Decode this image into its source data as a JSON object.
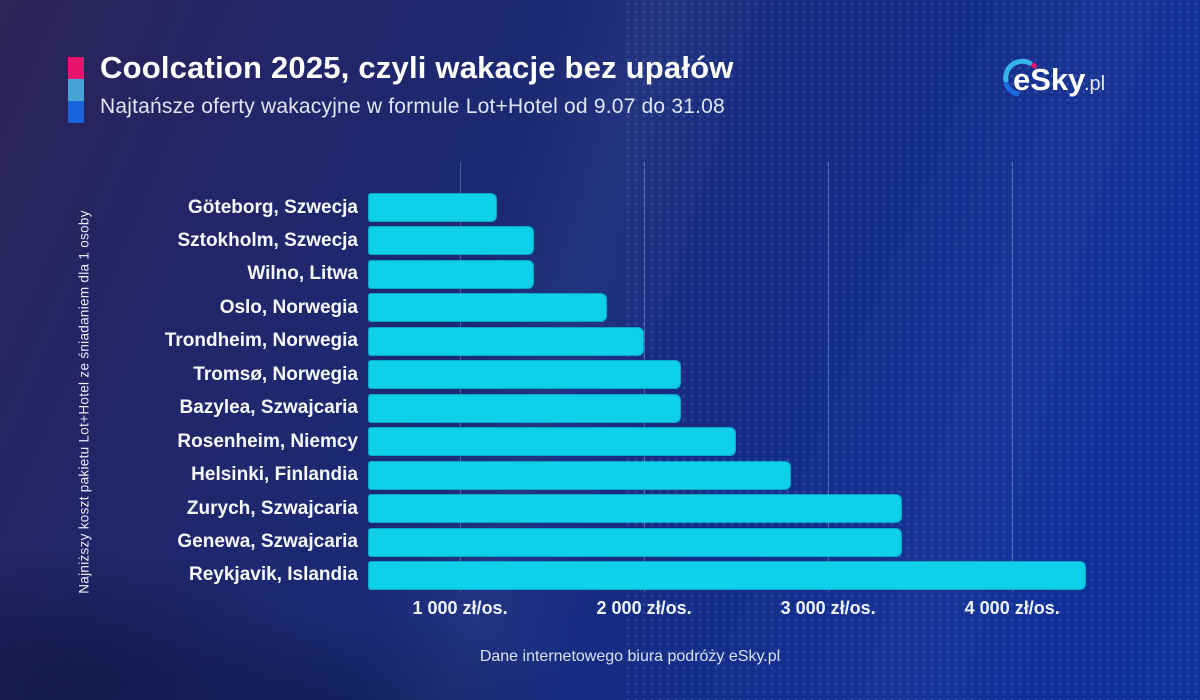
{
  "header": {
    "title": "Coolcation 2025, czyli wakacje bez upałów",
    "subtitle": "Najtańsze oferty wakacyjne w formule Lot+Hotel od 9.07 do 31.08",
    "accent_colors": [
      "#e8136b",
      "#47a4d7",
      "#1b63dc"
    ]
  },
  "logo": {
    "text": "eSky",
    "suffix": ".pl",
    "arc_top_color": "#35b6e8",
    "arc_dot_color": "#e8136b",
    "arc_bottom_color": "#1b6ae0"
  },
  "chart_data": {
    "type": "bar",
    "orientation": "horizontal",
    "title": "Coolcation 2025, czyli wakacje bez upałów",
    "subtitle": "Najtańsze oferty wakacyjne w formule Lot+Hotel od 9.07 do 31.08",
    "categories": [
      "Göteborg, Szwecja",
      "Sztokholm, Szwecja",
      "Wilno, Litwa",
      "Oslo, Norwegia",
      "Trondheim, Norwegia",
      "Tromsø, Norwegia",
      "Bazylea, Szwajcaria",
      "Rosenheim, Niemcy",
      "Helsinki, Finlandia",
      "Zurych, Szwajcaria",
      "Genewa, Szwajcaria",
      "Reykjavik, Islandia"
    ],
    "values": [
      1200,
      1400,
      1400,
      1800,
      2000,
      2200,
      2200,
      2500,
      2800,
      3400,
      3400,
      4400
    ],
    "unit": "zł/os.",
    "x_ticks": [
      {
        "value": 1000,
        "label": "1 000 zł/os."
      },
      {
        "value": 2000,
        "label": "2 000 zł/os."
      },
      {
        "value": 3000,
        "label": "3 000 zł/os."
      },
      {
        "value": 4000,
        "label": "4 000 zł/os."
      }
    ],
    "axis_min": 500,
    "axis_max": 4640,
    "xlabel": "",
    "ylabel": "Najniższy koszt pakietu Lot+Hotel ze śniadaniem dla 1 osoby",
    "bar_color": "#0fd0e9",
    "grid": true,
    "legend": false
  },
  "footer": {
    "source": "Dane internetowego biura podróży eSky.pl"
  }
}
